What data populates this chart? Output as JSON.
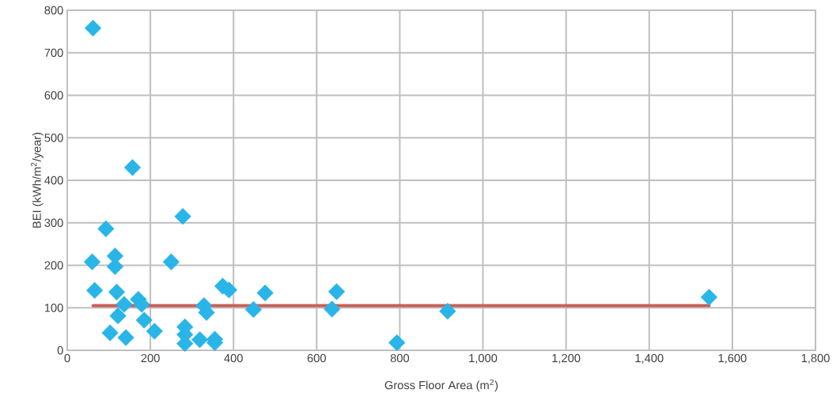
{
  "chart_data": {
    "type": "scatter",
    "xlabel": "Gross Floor Area (m$^{2}$)",
    "ylabel": "BEI (kWh/m$^{2}$/year)",
    "xlim": [
      0,
      1800
    ],
    "ylim": [
      0,
      800
    ],
    "xticks": [
      0,
      200,
      400,
      600,
      800,
      {
        "value": 1000,
        "label": "1,000"
      },
      {
        "value": 1200,
        "label": "1,200"
      },
      {
        "value": 1400,
        "label": "1,400"
      },
      {
        "value": 1600,
        "label": "1,600"
      },
      {
        "value": 1800,
        "label": "1,800"
      }
    ],
    "yticks": [
      0,
      100,
      200,
      300,
      400,
      500,
      600,
      700,
      800
    ],
    "grid": true,
    "series": [
      {
        "marker": "diamond",
        "color": "#29b5e8",
        "x": [
          62,
          157,
          93,
          278,
          60,
          115,
          115,
          250,
          66,
          119,
          171,
          179,
          137,
          122,
          185,
          103,
          141,
          210,
          283,
          283,
          283,
          319,
          355,
          355,
          329,
          335,
          374,
          389,
          448,
          476,
          637,
          648,
          793,
          915,
          1544
        ],
        "values": [
          758,
          430,
          286,
          315,
          208,
          222,
          197,
          208,
          141,
          137,
          120,
          108,
          108,
          81,
          71,
          41,
          30,
          45,
          55,
          37,
          16,
          25,
          26,
          18,
          105,
          89,
          151,
          142,
          96,
          135,
          97,
          138,
          18,
          92,
          125
        ]
      },
      {
        "type": "line",
        "color": "#c9605a",
        "x": [
          62,
          1544
        ],
        "values": [
          105,
          105
        ]
      }
    ]
  }
}
